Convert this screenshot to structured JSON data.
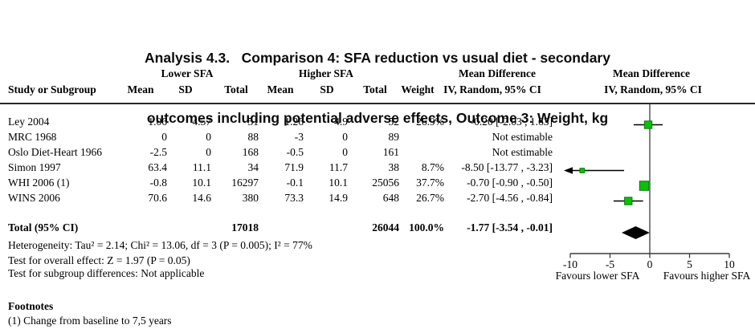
{
  "title": {
    "line1": "Analysis 4.3.   Comparison 4: SFA reduction vs usual diet - secondary",
    "line2": "outcomes including potential adverse effects, Outcome 3: Weight, kg"
  },
  "header": {
    "group_lower": "Lower SFA",
    "group_higher": "Higher SFA",
    "md_text_col": "Mean Difference",
    "md_plot_col": "Mean Difference",
    "study": "Study or Subgroup",
    "mean_lower": "Mean",
    "sd_lower": "SD",
    "total_lower": "Total",
    "mean_higher": "Mean",
    "sd_higher": "SD",
    "total_higher": "Total",
    "weight": "Weight",
    "ci_method": "IV, Random, 95% CI",
    "ci_method_plot": "IV, Random, 95% CI"
  },
  "chart_data": {
    "type": "scatter",
    "subtype": "forest-plot-meta-analysis",
    "effect_label": "Mean Difference IV, Random, 95% CI",
    "studies": [
      {
        "study": "Ley 2004",
        "mean_lower": "1.06",
        "sd_lower": "4.57",
        "total_lower": "51",
        "mean_higher": "1.26",
        "sd_higher": "4.9",
        "total_higher": "52",
        "weight": "26.9%",
        "weight_pct": 26.9,
        "ci_text": "-0.20 [-2.03 , 1.63]",
        "estimate": -0.2,
        "ci_low": -2.03,
        "ci_high": 1.63,
        "estimable": true,
        "arrow_low": false
      },
      {
        "study": "MRC 1968",
        "mean_lower": "0",
        "sd_lower": "0",
        "total_lower": "88",
        "mean_higher": "-3",
        "sd_higher": "0",
        "total_higher": "89",
        "weight": "",
        "weight_pct": null,
        "ci_text": "Not estimable",
        "estimable": false,
        "arrow_low": false
      },
      {
        "study": "Oslo Diet-Heart 1966",
        "mean_lower": "-2.5",
        "sd_lower": "0",
        "total_lower": "168",
        "mean_higher": "-0.5",
        "sd_higher": "0",
        "total_higher": "161",
        "weight": "",
        "weight_pct": null,
        "ci_text": "Not estimable",
        "estimable": false,
        "arrow_low": false
      },
      {
        "study": "Simon 1997",
        "mean_lower": "63.4",
        "sd_lower": "11.1",
        "total_lower": "34",
        "mean_higher": "71.9",
        "sd_higher": "11.7",
        "total_higher": "38",
        "weight": "8.7%",
        "weight_pct": 8.7,
        "ci_text": "-8.50 [-13.77 , -3.23]",
        "estimate": -8.5,
        "ci_low": -13.77,
        "ci_high": -3.23,
        "estimable": true,
        "arrow_low": true
      },
      {
        "study": "WHI 2006 (1)",
        "mean_lower": "-0.8",
        "sd_lower": "10.1",
        "total_lower": "16297",
        "mean_higher": "-0.1",
        "sd_higher": "10.1",
        "total_higher": "25056",
        "weight": "37.7%",
        "weight_pct": 37.7,
        "ci_text": "-0.70 [-0.90 , -0.50]",
        "estimate": -0.7,
        "ci_low": -0.9,
        "ci_high": -0.5,
        "estimable": true,
        "arrow_low": false
      },
      {
        "study": "WINS 2006",
        "mean_lower": "70.6",
        "sd_lower": "14.6",
        "total_lower": "380",
        "mean_higher": "73.3",
        "sd_higher": "14.9",
        "total_higher": "648",
        "weight": "26.7%",
        "weight_pct": 26.7,
        "ci_text": "-2.70 [-4.56 , -0.84]",
        "estimate": -2.7,
        "ci_low": -4.56,
        "ci_high": -0.84,
        "estimable": true,
        "arrow_low": false
      }
    ],
    "total": {
      "label": "Total (95% CI)",
      "total_lower": "17018",
      "total_higher": "26044",
      "weight": "100.0%",
      "ci_text": "-1.77 [-3.54 , -0.01]",
      "estimate": -1.77,
      "ci_low": -3.54,
      "ci_high": -0.01
    },
    "axis": {
      "xlim": [
        -10,
        10
      ],
      "ticks": [
        "-10",
        "-5",
        "0",
        "5",
        "10"
      ],
      "tick_values": [
        -10,
        -5,
        0,
        5,
        10
      ],
      "favours_left": "Favours lower SFA",
      "favours_right": "Favours higher SFA"
    },
    "colors": {
      "square": "#0cbf0c",
      "square_border": "#067d06",
      "diamond": "#000000",
      "zero_line": "#808080",
      "axis_line": "#3a3a3a",
      "ci_line": "#000000"
    }
  },
  "stats": {
    "heterogeneity": "Heterogeneity: Tau² = 2.14; Chi² = 13.06, df = 3 (P = 0.005); I² = 77%",
    "overall_effect": "Test for overall effect: Z = 1.97 (P = 0.05)",
    "subgroup": "Test for subgroup differences: Not applicable"
  },
  "footnotes": {
    "heading": "Footnotes",
    "items": [
      "(1) Change from baseline to 7,5 years"
    ]
  }
}
